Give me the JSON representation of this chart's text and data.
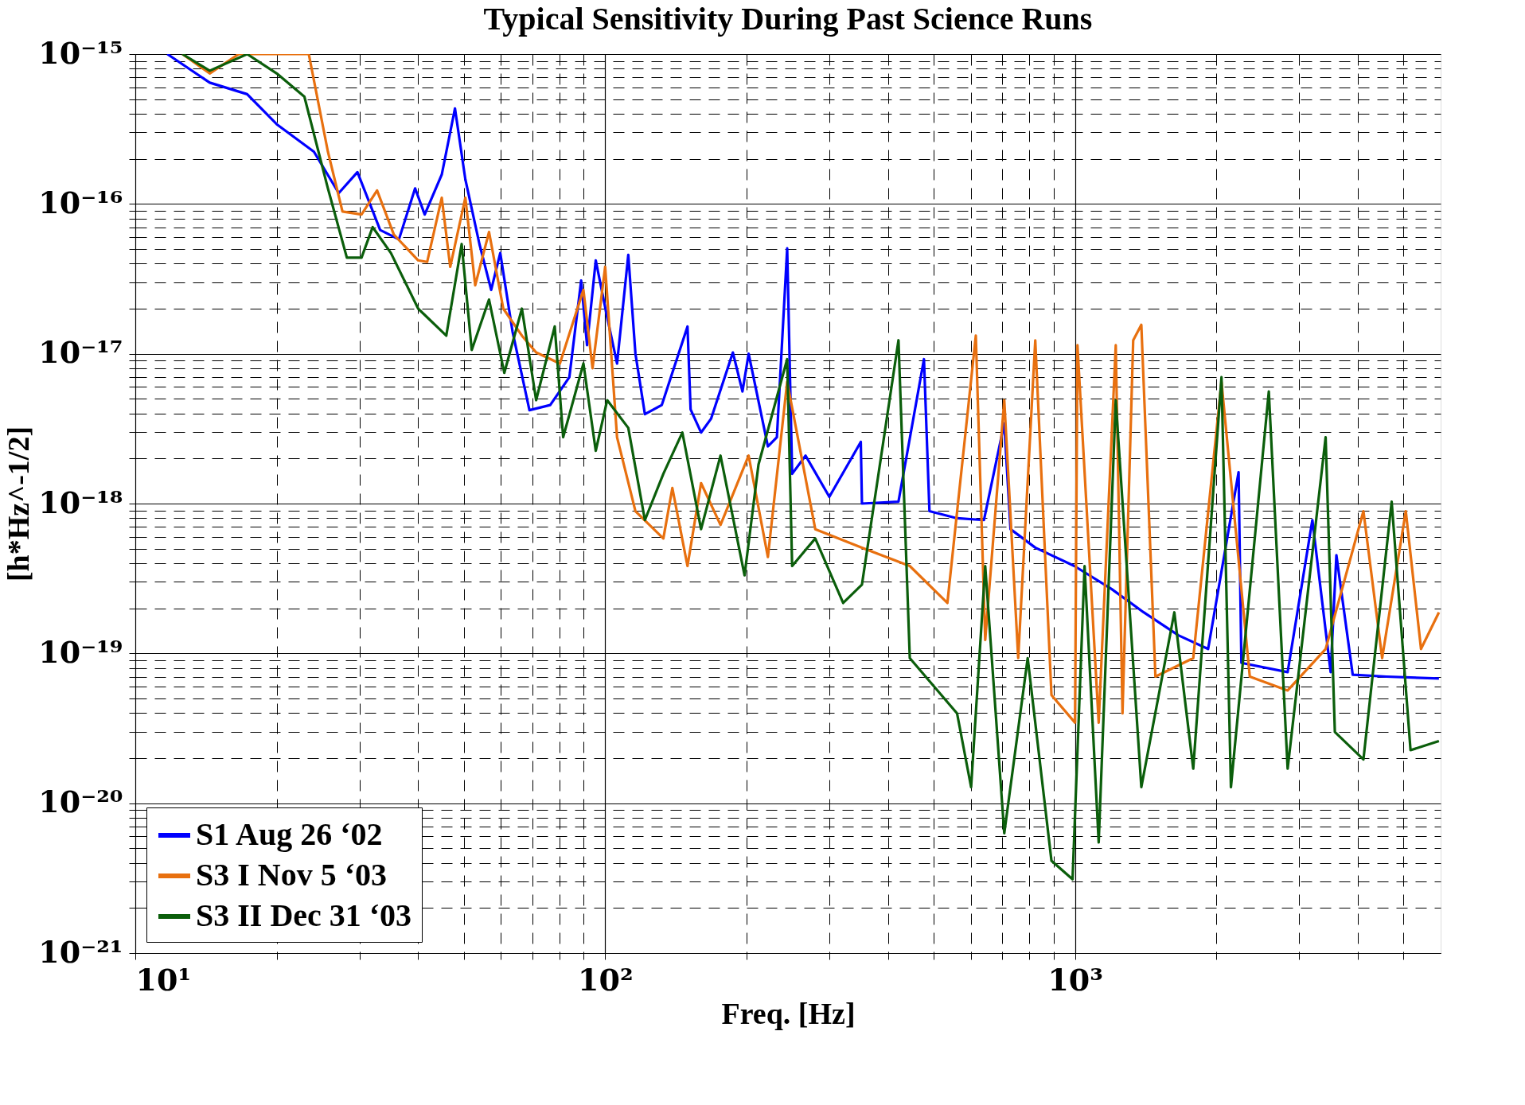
{
  "chart_data": {
    "type": "line",
    "title": "Typical Sensitivity During Past Science Runs",
    "xlabel": "Freq. [Hz]",
    "ylabel": "[h*Hz^-1/2]",
    "log": "xy",
    "grid": true,
    "legend": "bottom left",
    "line_style": "solid",
    "marker": "none",
    "xlim": [
      10,
      6000
    ],
    "ylim": [
      1e-21,
      1e-15
    ],
    "xticks": [
      {
        "value": 10,
        "label": "10¹"
      },
      {
        "value": 20,
        "label": null
      },
      {
        "value": 30,
        "label": null
      },
      {
        "value": 40,
        "label": null
      },
      {
        "value": 50,
        "label": null
      },
      {
        "value": 60,
        "label": null
      },
      {
        "value": 70,
        "label": null
      },
      {
        "value": 80,
        "label": null
      },
      {
        "value": 90,
        "label": null
      },
      {
        "value": 100,
        "label": "10²"
      },
      {
        "value": 200,
        "label": null
      },
      {
        "value": 300,
        "label": null
      },
      {
        "value": 400,
        "label": null
      },
      {
        "value": 500,
        "label": null
      },
      {
        "value": 600,
        "label": null
      },
      {
        "value": 700,
        "label": null
      },
      {
        "value": 800,
        "label": null
      },
      {
        "value": 900,
        "label": null
      },
      {
        "value": 1000,
        "label": "10³"
      },
      {
        "value": 2000,
        "label": null
      },
      {
        "value": 3000,
        "label": null
      },
      {
        "value": 4000,
        "label": null
      },
      {
        "value": 5000,
        "label": null
      }
    ],
    "yticks": [
      {
        "value": 1e-21,
        "label": "10⁻²¹"
      },
      {
        "value": 2e-21,
        "label": null
      },
      {
        "value": 3e-21,
        "label": null
      },
      {
        "value": 4e-21,
        "label": null
      },
      {
        "value": 5e-21,
        "label": null
      },
      {
        "value": 6e-21,
        "label": null
      },
      {
        "value": 7e-21,
        "label": null
      },
      {
        "value": 8e-21,
        "label": null
      },
      {
        "value": 9e-21,
        "label": null
      },
      {
        "value": 1e-20,
        "label": "10⁻²⁰"
      },
      {
        "value": 2e-20,
        "label": null
      },
      {
        "value": 3e-20,
        "label": null
      },
      {
        "value": 4e-20,
        "label": null
      },
      {
        "value": 5e-20,
        "label": null
      },
      {
        "value": 6e-20,
        "label": null
      },
      {
        "value": 7e-20,
        "label": null
      },
      {
        "value": 8e-20,
        "label": null
      },
      {
        "value": 9e-20,
        "label": null
      },
      {
        "value": 1e-19,
        "label": "10⁻¹⁹"
      },
      {
        "value": 2e-19,
        "label": null
      },
      {
        "value": 3e-19,
        "label": null
      },
      {
        "value": 4e-19,
        "label": null
      },
      {
        "value": 5e-19,
        "label": null
      },
      {
        "value": 6e-19,
        "label": null
      },
      {
        "value": 7e-19,
        "label": null
      },
      {
        "value": 8e-19,
        "label": null
      },
      {
        "value": 9e-19,
        "label": null
      },
      {
        "value": 1e-18,
        "label": "10⁻¹⁸"
      },
      {
        "value": 2e-18,
        "label": null
      },
      {
        "value": 3e-18,
        "label": null
      },
      {
        "value": 4e-18,
        "label": null
      },
      {
        "value": 5e-18,
        "label": null
      },
      {
        "value": 6e-18,
        "label": null
      },
      {
        "value": 7e-18,
        "label": null
      },
      {
        "value": 8e-18,
        "label": null
      },
      {
        "value": 9e-18,
        "label": null
      },
      {
        "value": 1e-17,
        "label": "10⁻¹⁷"
      },
      {
        "value": 2e-17,
        "label": null
      },
      {
        "value": 3e-17,
        "label": null
      },
      {
        "value": 4e-17,
        "label": null
      },
      {
        "value": 5e-17,
        "label": null
      },
      {
        "value": 6e-17,
        "label": null
      },
      {
        "value": 7e-17,
        "label": null
      },
      {
        "value": 8e-17,
        "label": null
      },
      {
        "value": 9e-17,
        "label": null
      },
      {
        "value": 1e-16,
        "label": "10⁻¹⁶"
      },
      {
        "value": 2e-16,
        "label": null
      },
      {
        "value": 3e-16,
        "label": null
      },
      {
        "value": 4e-16,
        "label": null
      },
      {
        "value": 5e-16,
        "label": null
      },
      {
        "value": 6e-16,
        "label": null
      },
      {
        "value": 7e-16,
        "label": null
      },
      {
        "value": 8e-16,
        "label": null
      },
      {
        "value": 9e-16,
        "label": null
      },
      {
        "value": 1e-15,
        "label": "10⁻¹⁵"
      }
    ],
    "series": [
      {
        "name": "S1 Aug 26 ‘02",
        "color": "#0000ff",
        "x": [
          11.7,
          14.4,
          17.3,
          20,
          24,
          27.1,
          29.7,
          33.2,
          36.4,
          39.4,
          41.3,
          44.9,
          47.9,
          50.4,
          54,
          57.2,
          59.8,
          63.5,
          69,
          76.4,
          83.9,
          88.9,
          91.5,
          95.5,
          101,
          106,
          112,
          116,
          121.5,
          132,
          149.7,
          152,
          160,
          168,
          187,
          196,
          202,
          222,
          232,
          244,
          250,
          267,
          300,
          350,
          352,
          421,
          477,
          490,
          561,
          640,
          707,
          729,
          823,
          997,
          1196,
          1400,
          1660,
          1920,
          2229,
          2260,
          2835,
          3200,
          3500,
          3600,
          3900,
          4600,
          5950
        ],
        "values": [
          1e-15,
          6.45e-16,
          5.4e-16,
          3.4e-16,
          2.23e-16,
          1.18e-16,
          1.63e-16,
          6.7e-17,
          5.8e-17,
          1.27e-16,
          8.5e-17,
          1.57e-16,
          4.34e-16,
          1.46e-16,
          5.4e-17,
          2.67e-17,
          4.7e-17,
          1.41e-17,
          4.2e-18,
          4.55e-18,
          6.97e-18,
          3.08e-17,
          1.14e-17,
          4.2e-17,
          1.75e-17,
          8.6e-18,
          4.57e-17,
          1e-17,
          3.95e-18,
          4.55e-18,
          1.52e-17,
          4.25e-18,
          2.98e-18,
          3.68e-18,
          1.02e-17,
          5.6e-18,
          1e-17,
          2.41e-18,
          2.77e-18,
          5.05e-17,
          1.58e-18,
          2.09e-18,
          1.11e-18,
          2.58e-18,
          1e-18,
          1.03e-18,
          9.2e-18,
          8.9e-19,
          7.98e-19,
          7.76e-19,
          3.43e-18,
          6.75e-19,
          5.08e-19,
          3.83e-19,
          2.69e-19,
          1.88e-19,
          1.32e-19,
          1.07e-19,
          1.62e-18,
          8.65e-20,
          7.5e-20,
          7.76e-19,
          7.5e-20,
          4.53e-19,
          7.2e-20,
          7e-20,
          6.8e-20
        ]
      },
      {
        "name": "S3 I Nov 5 ‘03",
        "color": "#e8700f",
        "x": [
          12.6,
          14.4,
          16.6,
          23.4,
          25.7,
          27.6,
          30.3,
          32.7,
          35.5,
          40,
          41.8,
          44.9,
          46.8,
          50.4,
          52.9,
          56.6,
          60.7,
          66.5,
          71.3,
          80.1,
          89.9,
          94,
          100,
          106,
          116,
          133,
          139,
          149.7,
          160,
          176,
          202,
          222,
          244,
          280,
          352,
          445,
          535,
          615,
          644,
          707,
          757,
          823,
          891,
          1000,
          1012,
          1123,
          1221,
          1262,
          1330,
          1384,
          1483,
          1785,
          2050,
          2355,
          2835,
          3415,
          4110,
          4505,
          5058,
          5450,
          5950
        ],
        "values": [
          1e-15,
          7.43e-16,
          1e-15,
          1e-15,
          2.23e-16,
          8.9e-17,
          8.5e-17,
          1.23e-16,
          6.24e-17,
          4.2e-17,
          4.1e-17,
          1.1e-16,
          3.8e-17,
          1.1e-16,
          2.86e-17,
          6.5e-17,
          2e-17,
          1.32e-17,
          1.02e-17,
          8.6e-18,
          2.67e-17,
          8e-18,
          3.8e-17,
          2.77e-18,
          8.9e-19,
          5.85e-19,
          1.27e-18,
          3.83e-19,
          1.37e-18,
          7.2e-19,
          2.09e-18,
          4.4e-19,
          6.5e-18,
          6.75e-19,
          5.08e-19,
          3.83e-19,
          2.17e-19,
          1.32e-17,
          1.23e-19,
          4.9e-18,
          9.3e-20,
          1.23e-17,
          5.27e-20,
          3.45e-20,
          1.14e-17,
          3.45e-20,
          1.14e-17,
          3.98e-20,
          1.23e-17,
          1.56e-17,
          7e-20,
          9.3e-20,
          6.5e-18,
          7e-20,
          5.66e-20,
          1.07e-19,
          8.9e-19,
          9.3e-20,
          8.9e-19,
          1.07e-19,
          1.88e-19
        ]
      },
      {
        "name": "S3 II Dec 31 ‘03",
        "color": "#0b5e0b",
        "x": [
          12.6,
          14.4,
          17.3,
          20,
          22.9,
          25.7,
          28.2,
          30.3,
          32,
          35,
          40,
          45.9,
          49.5,
          52,
          56.6,
          61,
          66.5,
          71.3,
          78.1,
          81.4,
          89.9,
          95.5,
          101,
          112,
          121.5,
          133,
          146,
          160,
          176,
          198,
          212,
          244,
          250,
          280,
          321,
          352,
          421,
          445,
          561,
          601,
          644,
          707,
          793,
          891,
          988,
          1048,
          1123,
          1221,
          1384,
          1627,
          1785,
          2050,
          2147,
          2585,
          2835,
          3415,
          3573,
          4110,
          4720,
          5177,
          5950
        ],
        "values": [
          1e-15,
          7.75e-16,
          1e-15,
          7.43e-16,
          5.2e-16,
          1.27e-16,
          4.38e-17,
          4.38e-17,
          7e-17,
          4.7e-17,
          2e-17,
          1.32e-17,
          5.4e-17,
          1.06e-17,
          2.3e-17,
          7.45e-18,
          2e-17,
          4.9e-18,
          1.52e-17,
          2.77e-18,
          8.6e-18,
          2.25e-18,
          4.9e-18,
          3.2e-18,
          7.76e-19,
          1.58e-18,
          2.98e-18,
          6.75e-19,
          2.09e-18,
          3.32e-19,
          1.82e-18,
          9.2e-18,
          3.83e-19,
          5.85e-19,
          2.17e-19,
          2.88e-19,
          1.23e-17,
          9.3e-20,
          3.98e-20,
          1.28e-20,
          3.83e-19,
          6.3e-21,
          9.3e-20,
          4.13e-21,
          3.11e-21,
          3.83e-19,
          5.48e-21,
          4.9e-18,
          1.28e-20,
          1.88e-19,
          1.7e-20,
          6.97e-18,
          1.28e-20,
          5.6e-18,
          1.7e-20,
          2.77e-18,
          2.99e-20,
          1.96e-20,
          1.03e-18,
          2.26e-20,
          2.6e-20
        ]
      }
    ]
  }
}
